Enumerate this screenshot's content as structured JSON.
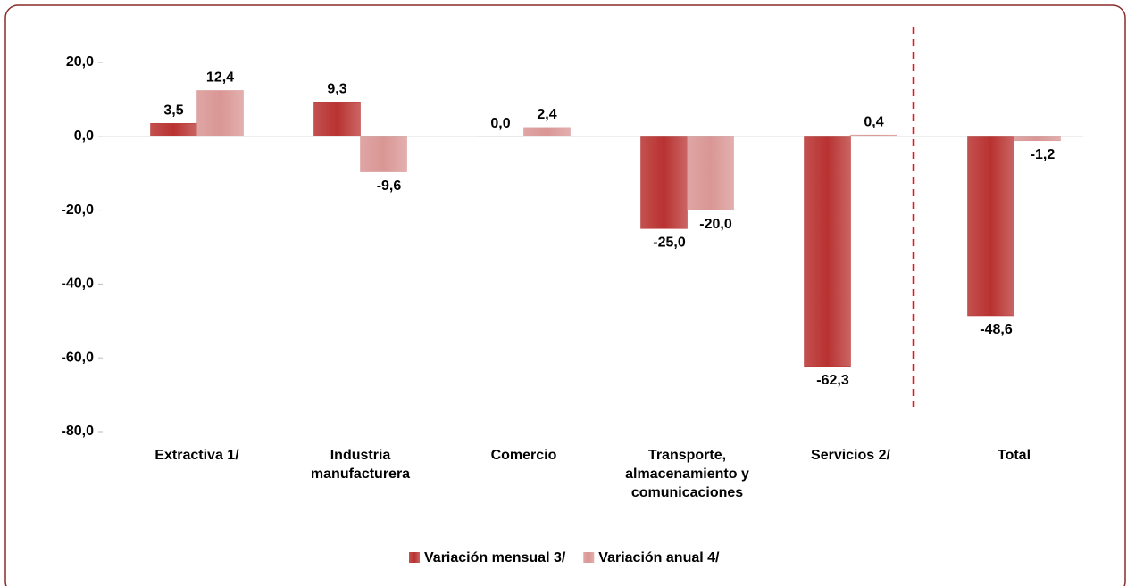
{
  "chart_data": {
    "type": "bar",
    "categories": [
      "Extractiva 1/",
      "Industria manufacturera",
      "Comercio",
      "Transporte, almacenamiento y comunicaciones",
      "Servicios 2/",
      "Total"
    ],
    "series": [
      {
        "name": "Variación mensual 3/",
        "color": "#b83230",
        "values": [
          3.5,
          9.3,
          0.0,
          -25.0,
          -62.3,
          -48.6
        ],
        "value_labels": [
          "3,5",
          "9,3",
          "0,0",
          "-25,0",
          "-62,3",
          "-48,6"
        ]
      },
      {
        "name": "Variación anual 4/",
        "color": "#d99694",
        "values": [
          12.4,
          -9.6,
          2.4,
          -20.0,
          0.4,
          -1.2
        ],
        "value_labels": [
          "12,4",
          "-9,6",
          "2,4",
          "-20,0",
          "0,4",
          "-1,2"
        ]
      }
    ],
    "ylim": [
      -80,
      20
    ],
    "yticks": [
      {
        "value": -80,
        "label": "-80,0"
      },
      {
        "value": -60,
        "label": "-60,0"
      },
      {
        "value": -40,
        "label": "-40,0"
      },
      {
        "value": -20,
        "label": "-20,0"
      },
      {
        "value": 0,
        "label": "0,0"
      },
      {
        "value": 20,
        "label": "20,0"
      }
    ],
    "grid": false,
    "legend": "bottom"
  }
}
